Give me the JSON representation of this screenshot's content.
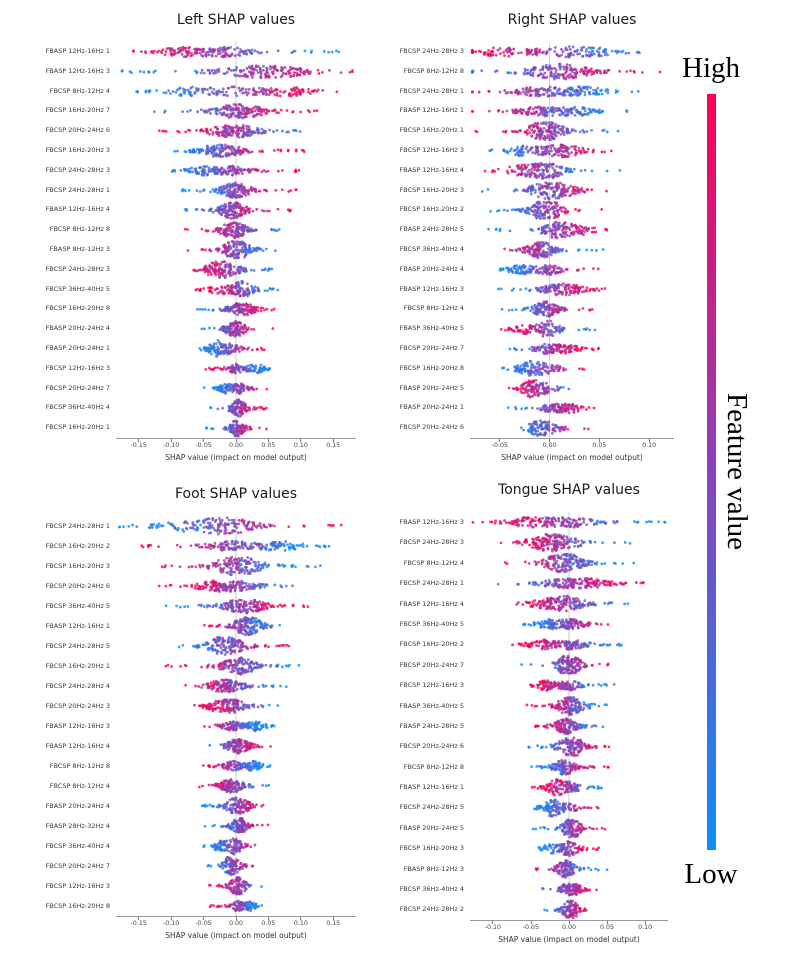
{
  "figure": {
    "colorbar": {
      "high_label": "High",
      "low_label": "Low",
      "title": "Feature value",
      "color_high": "#ff0057",
      "color_mid": "#8a43b8",
      "color_low": "#0d8df8"
    }
  },
  "chart_data": [
    {
      "type": "scatter",
      "subtype": "shap-beeswarm",
      "title": "Left SHAP values",
      "xlabel": "SHAP value (impact on model output)",
      "xlim": [
        -0.185,
        0.185
      ],
      "xticks": [
        -0.15,
        -0.1,
        -0.05,
        0.0,
        0.05,
        0.1,
        0.15
      ],
      "features": [
        "FBASP 12Hz-16Hz 1",
        "FBASP 12Hz-16Hz 3",
        "FBCSP 8Hz-12Hz 4",
        "FBCSP 16Hz-20Hz 7",
        "FBCSP 20Hz-24Hz 6",
        "FBCSP 16Hz-20Hz 3",
        "FBCSP 24Hz-28Hz 3",
        "FBCSP 24Hz-28Hz 1",
        "FBASP 12Hz-16Hz 4",
        "FBCSP 8Hz-12Hz 8",
        "FBASP 8Hz-12Hz 3",
        "FBCSP 24Hz-28Hz 3",
        "FBCSP 36Hz-40Hz 5",
        "FBCSP 16Hz-20Hz 8",
        "FBASP 20Hz-24Hz 4",
        "FBASP 20Hz-24Hz 1",
        "FBCSP 12Hz-16Hz 3",
        "FBCSP 20Hz-24Hz 7",
        "FBCSP 36Hz-40Hz 4",
        "FBCSP 16Hz-20Hz 1"
      ],
      "spreads": [
        0.135,
        0.16,
        0.125,
        0.105,
        0.095,
        0.085,
        0.08,
        0.075,
        0.07,
        0.065,
        0.06,
        0.06,
        0.055,
        0.05,
        0.05,
        0.045,
        0.045,
        0.04,
        0.04,
        0.038
      ]
    },
    {
      "type": "scatter",
      "subtype": "shap-beeswarm",
      "title": "Right SHAP values",
      "xlabel": "SHAP value (impact on model output)",
      "xlim": [
        -0.08,
        0.125
      ],
      "xticks": [
        -0.05,
        0.0,
        0.05,
        0.1
      ],
      "features": [
        "FBCSP 24Hz-28Hz 3",
        "FBCSP 8Hz-12Hz 8",
        "FBCSP 24Hz-28Hz 1",
        "FBASP 12Hz-16Hz 1",
        "FBCSP 16Hz-20Hz 1",
        "FBCSP 12Hz-16Hz 3",
        "FBASP 12Hz-16Hz 4",
        "FBCSP 16Hz-20Hz 3",
        "FBCSP 16Hz-20Hz 2",
        "FBASP 24Hz-28Hz 5",
        "FBCSP 36Hz-40Hz 4",
        "FBASP 20Hz-24Hz 4",
        "FBASP 12Hz-16Hz 3",
        "FBCSP 8Hz-12Hz 4",
        "FBASP 36Hz-40Hz 5",
        "FBCSP 20Hz-24Hz 7",
        "FBCSP 16Hz-20Hz 8",
        "FBASP 20Hz-24Hz 5",
        "FBASP 20Hz-24Hz 1",
        "FBCSP 20Hz-24Hz 6"
      ],
      "spreads": [
        0.085,
        0.095,
        0.085,
        0.065,
        0.06,
        0.055,
        0.06,
        0.055,
        0.05,
        0.05,
        0.045,
        0.045,
        0.045,
        0.04,
        0.04,
        0.04,
        0.038,
        0.036,
        0.034,
        0.032
      ]
    },
    {
      "type": "scatter",
      "subtype": "shap-beeswarm",
      "title": "Foot SHAP values",
      "xlabel": "SHAP value (impact on model output)",
      "xlim": [
        -0.185,
        0.185
      ],
      "xticks": [
        -0.15,
        -0.1,
        -0.05,
        0.0,
        0.05,
        0.1,
        0.15
      ],
      "features": [
        "FBCSP 24Hz-28Hz 1",
        "FBCSP 16Hz-20Hz 2",
        "FBCSP 16Hz-20Hz 3",
        "FBCSP 20Hz-24Hz 6",
        "FBCSP 36Hz-40Hz 5",
        "FBASP 12Hz-16Hz 1",
        "FBCSP 24Hz-28Hz 5",
        "FBCSP 16Hz-20Hz 1",
        "FBCSP 24Hz-28Hz 4",
        "FBCSP 20Hz-24Hz 3",
        "FBASP 12Hz-16Hz 3",
        "FBASP 12Hz-16Hz 4",
        "FBCSP 8Hz-12Hz 8",
        "FBCSP 8Hz-12Hz 4",
        "FBASP 20Hz-24Hz 4",
        "FBASP 28Hz-32Hz 4",
        "FBCSP 36Hz-40Hz 4",
        "FBCSP 20Hz-24Hz 7",
        "FBCSP 12Hz-16Hz 3",
        "FBCSP 16Hz-20Hz 8"
      ],
      "spreads": [
        0.145,
        0.12,
        0.105,
        0.095,
        0.09,
        0.055,
        0.075,
        0.09,
        0.065,
        0.055,
        0.05,
        0.05,
        0.045,
        0.05,
        0.042,
        0.04,
        0.04,
        0.038,
        0.034,
        0.032
      ]
    },
    {
      "type": "scatter",
      "subtype": "shap-beeswarm",
      "title": "Tongue SHAP values",
      "xlabel": "SHAP value (impact on model output)",
      "xlim": [
        -0.13,
        0.13
      ],
      "xticks": [
        -0.1,
        -0.05,
        0.0,
        0.05,
        0.1
      ],
      "features": [
        "FBASP 12Hz-16Hz 3",
        "FBCSP 24Hz-28Hz 3",
        "FBCSP 8Hz-12Hz 4",
        "FBCSP 24Hz-28Hz 1",
        "FBASP 12Hz-16Hz 4",
        "FBCSP 36Hz-40Hz 5",
        "FBCSP 16Hz-20Hz 2",
        "FBCSP 20Hz-24Hz 7",
        "FBCSP 12Hz-16Hz 3",
        "FBASP 36Hz-40Hz 5",
        "FBASP 24Hz-28Hz 5",
        "FBCSP 20Hz-24Hz 6",
        "FBCSP 8Hz-12Hz 8",
        "FBASP 12Hz-16Hz 1",
        "FBCSP 24Hz-28Hz 5",
        "FBASP 20Hz-24Hz 5",
        "FBCSP 16Hz-20Hz 3",
        "FBASP 8Hz-12Hz 3",
        "FBCSP 36Hz-40Hz 4",
        "FBCSP 24Hz-28Hz 2"
      ],
      "spreads": [
        0.105,
        0.075,
        0.07,
        0.08,
        0.065,
        0.055,
        0.06,
        0.05,
        0.048,
        0.045,
        0.042,
        0.05,
        0.042,
        0.04,
        0.04,
        0.038,
        0.036,
        0.04,
        0.032,
        0.03
      ]
    }
  ]
}
